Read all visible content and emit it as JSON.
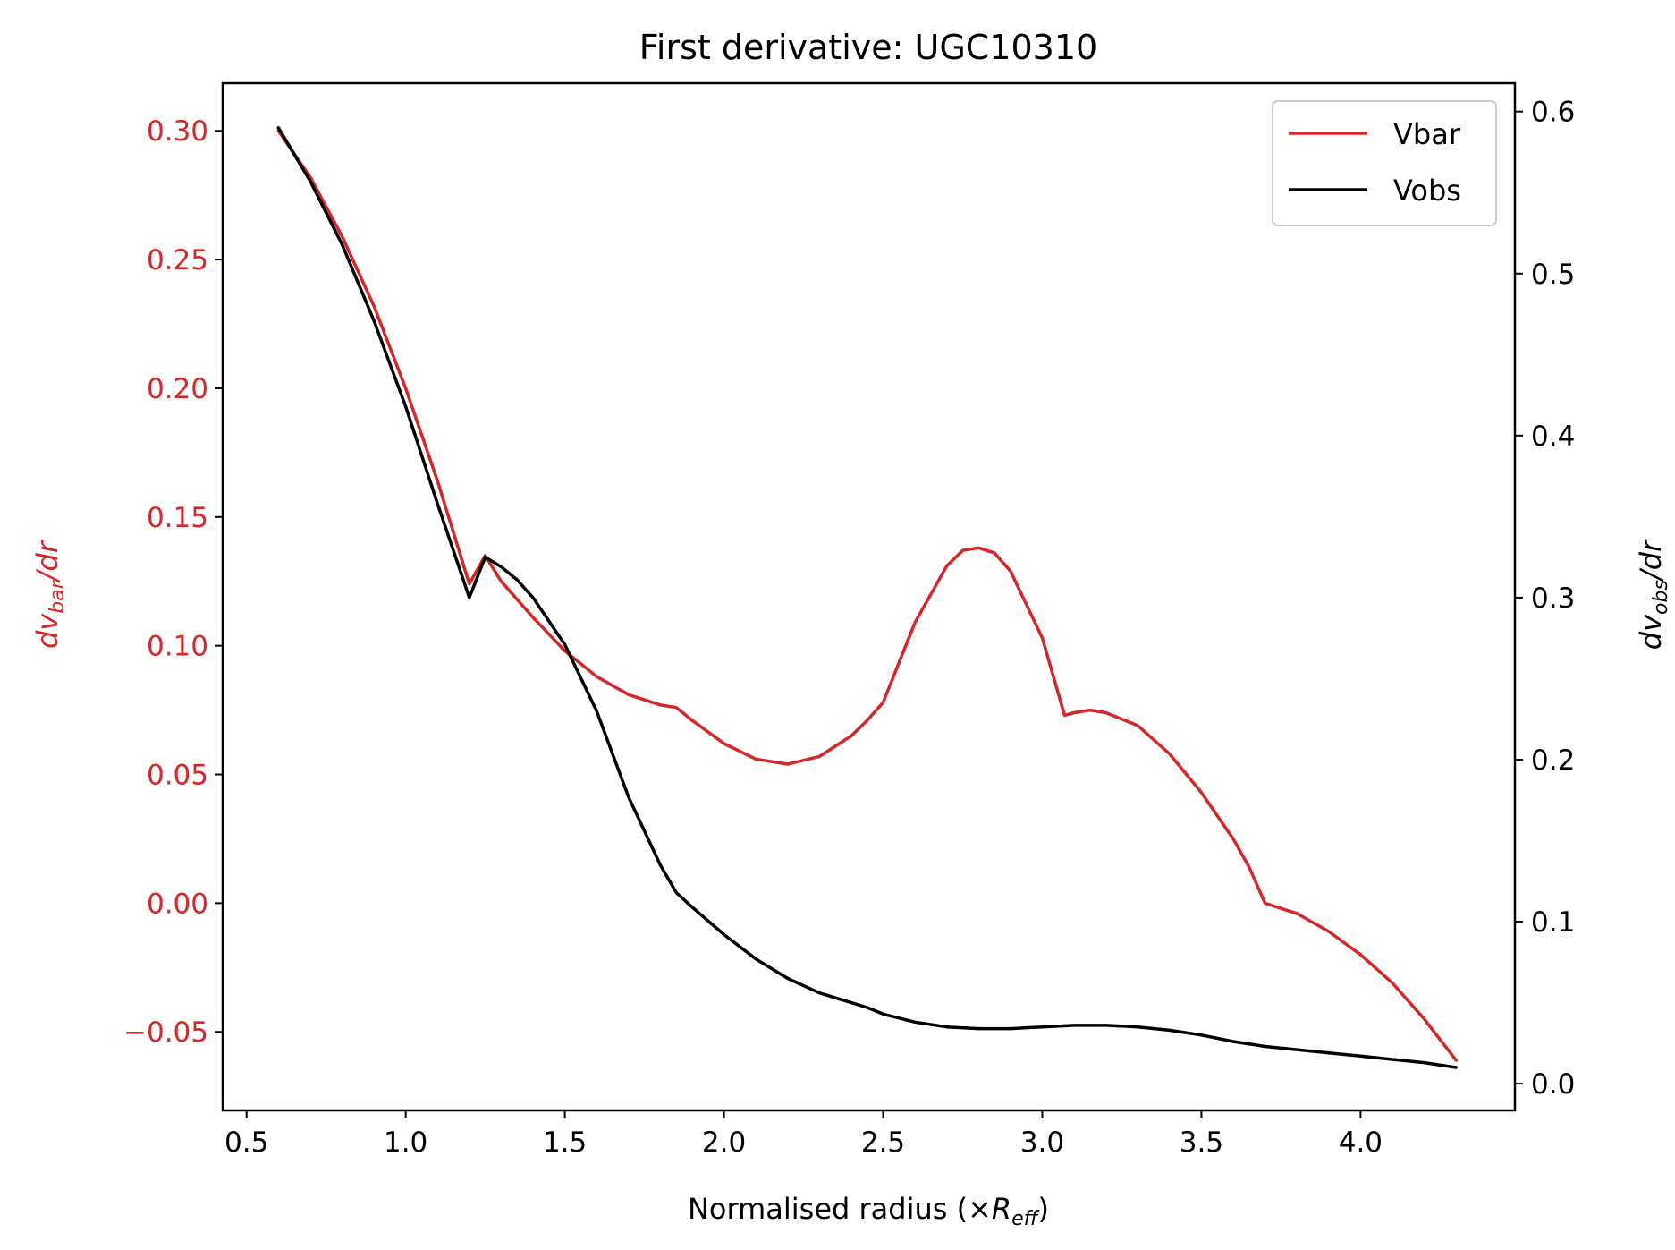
{
  "chart_data": {
    "type": "line",
    "title": "First derivative: UGC10310",
    "xlabel": {
      "main": "Normalised radius (×",
      "var": "R",
      "sub": "eff",
      "close": ")"
    },
    "ylabel_left": {
      "d": "d",
      "v": "v",
      "sub": "bar",
      "tail": "/dr"
    },
    "ylabel_right": {
      "d": "d",
      "v": "v",
      "sub": "obs",
      "tail": "/dr"
    },
    "xlim": [
      0.425,
      4.485
    ],
    "ylim_left": [
      -0.0805,
      0.3185
    ],
    "ylim_right": [
      -0.0165,
      0.6175
    ],
    "x_ticks": [
      0.5,
      1.0,
      1.5,
      2.0,
      2.5,
      3.0,
      3.5,
      4.0
    ],
    "x_tick_labels": [
      "0.5",
      "1.0",
      "1.5",
      "2.0",
      "2.5",
      "3.0",
      "3.5",
      "4.0"
    ],
    "left_ticks": [
      -0.05,
      0.0,
      0.05,
      0.1,
      0.15,
      0.2,
      0.25,
      0.3
    ],
    "left_tick_labels": [
      "−0.05",
      "0.00",
      "0.05",
      "0.10",
      "0.15",
      "0.20",
      "0.25",
      "0.30"
    ],
    "right_ticks": [
      0.0,
      0.1,
      0.2,
      0.3,
      0.4,
      0.5,
      0.6
    ],
    "right_tick_labels": [
      "0.0",
      "0.1",
      "0.2",
      "0.3",
      "0.4",
      "0.5",
      "0.6"
    ],
    "legend_position": "top-right",
    "colors": {
      "vbar": "#d62728",
      "vobs": "#000000",
      "left_axis": "#d62728",
      "right_axis": "#000000"
    },
    "series": [
      {
        "name": "Vbar",
        "axis": "left",
        "x": [
          0.6,
          0.7,
          0.8,
          0.9,
          1.0,
          1.1,
          1.2,
          1.25,
          1.3,
          1.4,
          1.5,
          1.6,
          1.7,
          1.8,
          1.85,
          1.9,
          2.0,
          2.1,
          2.2,
          2.3,
          2.4,
          2.45,
          2.5,
          2.6,
          2.7,
          2.75,
          2.8,
          2.85,
          2.9,
          3.0,
          3.07,
          3.1,
          3.15,
          3.2,
          3.3,
          3.4,
          3.5,
          3.6,
          3.65,
          3.7,
          3.8,
          3.9,
          4.0,
          4.1,
          4.2,
          4.3
        ],
        "y": [
          0.3,
          0.282,
          0.259,
          0.232,
          0.2,
          0.164,
          0.124,
          0.135,
          0.125,
          0.111,
          0.098,
          0.088,
          0.081,
          0.077,
          0.076,
          0.071,
          0.062,
          0.056,
          0.054,
          0.057,
          0.065,
          0.071,
          0.078,
          0.109,
          0.131,
          0.137,
          0.138,
          0.136,
          0.129,
          0.103,
          0.073,
          0.074,
          0.075,
          0.074,
          0.069,
          0.058,
          0.043,
          0.025,
          0.014,
          0.0,
          -0.004,
          -0.011,
          -0.02,
          -0.031,
          -0.045,
          -0.061
        ]
      },
      {
        "name": "Vobs",
        "axis": "right",
        "x": [
          0.6,
          0.7,
          0.8,
          0.9,
          1.0,
          1.1,
          1.2,
          1.25,
          1.3,
          1.35,
          1.4,
          1.5,
          1.6,
          1.7,
          1.8,
          1.85,
          1.9,
          2.0,
          2.1,
          2.2,
          2.3,
          2.4,
          2.45,
          2.5,
          2.6,
          2.7,
          2.8,
          2.9,
          3.0,
          3.1,
          3.2,
          3.3,
          3.4,
          3.5,
          3.6,
          3.7,
          3.8,
          3.9,
          4.0,
          4.1,
          4.2,
          4.3
        ],
        "y": [
          0.59,
          0.557,
          0.518,
          0.471,
          0.418,
          0.358,
          0.3,
          0.325,
          0.319,
          0.311,
          0.3,
          0.271,
          0.23,
          0.177,
          0.135,
          0.118,
          0.109,
          0.092,
          0.077,
          0.065,
          0.056,
          0.05,
          0.047,
          0.043,
          0.038,
          0.035,
          0.034,
          0.034,
          0.035,
          0.036,
          0.036,
          0.035,
          0.033,
          0.03,
          0.026,
          0.023,
          0.021,
          0.019,
          0.017,
          0.015,
          0.013,
          0.01
        ]
      }
    ]
  }
}
